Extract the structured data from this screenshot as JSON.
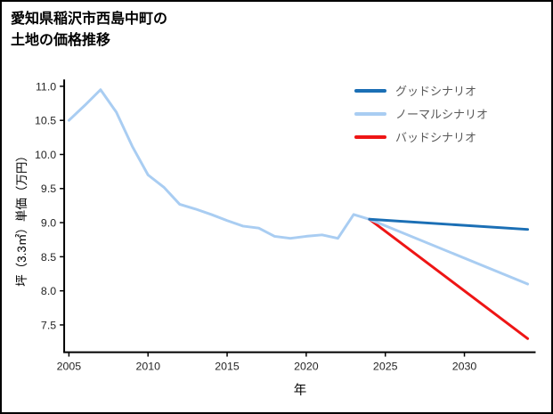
{
  "title": {
    "line1": "愛知県稲沢市西島中町の",
    "line2": "土地の価格推移"
  },
  "chart_data": {
    "type": "line",
    "title": "愛知県稲沢市西島中町の土地の価格推移",
    "xlabel": "年",
    "ylabel": "坪（3.3㎡）単価（万円）",
    "xlim": [
      2004.7,
      2034.5
    ],
    "ylim": [
      7.1,
      11.1
    ],
    "x_ticks": [
      2005,
      2010,
      2015,
      2020,
      2025,
      2030
    ],
    "y_ticks": [
      7.5,
      8.0,
      8.5,
      9.0,
      9.5,
      10.0,
      10.5,
      11.0
    ],
    "grid": false,
    "legend_position": "top-right",
    "history": {
      "color": "#a9cdf2",
      "x": [
        2005,
        2006,
        2007,
        2008,
        2009,
        2010,
        2011,
        2012,
        2013,
        2014,
        2015,
        2016,
        2017,
        2018,
        2019,
        2020,
        2021,
        2022,
        2023,
        2024
      ],
      "y": [
        10.5,
        10.72,
        10.95,
        10.62,
        10.12,
        9.7,
        9.52,
        9.27,
        9.2,
        9.12,
        9.03,
        8.95,
        8.92,
        8.8,
        8.77,
        8.8,
        8.82,
        8.77,
        9.12,
        9.05
      ]
    },
    "series": [
      {
        "name": "グッドシナリオ",
        "color": "#1b6fb5",
        "x": [
          2024,
          2034
        ],
        "y": [
          9.05,
          8.9
        ]
      },
      {
        "name": "ノーマルシナリオ",
        "color": "#a9cdf2",
        "x": [
          2024,
          2034
        ],
        "y": [
          9.05,
          8.1
        ]
      },
      {
        "name": "バッドシナリオ",
        "color": "#ee1515",
        "x": [
          2024,
          2034
        ],
        "y": [
          9.05,
          7.3
        ]
      }
    ]
  }
}
